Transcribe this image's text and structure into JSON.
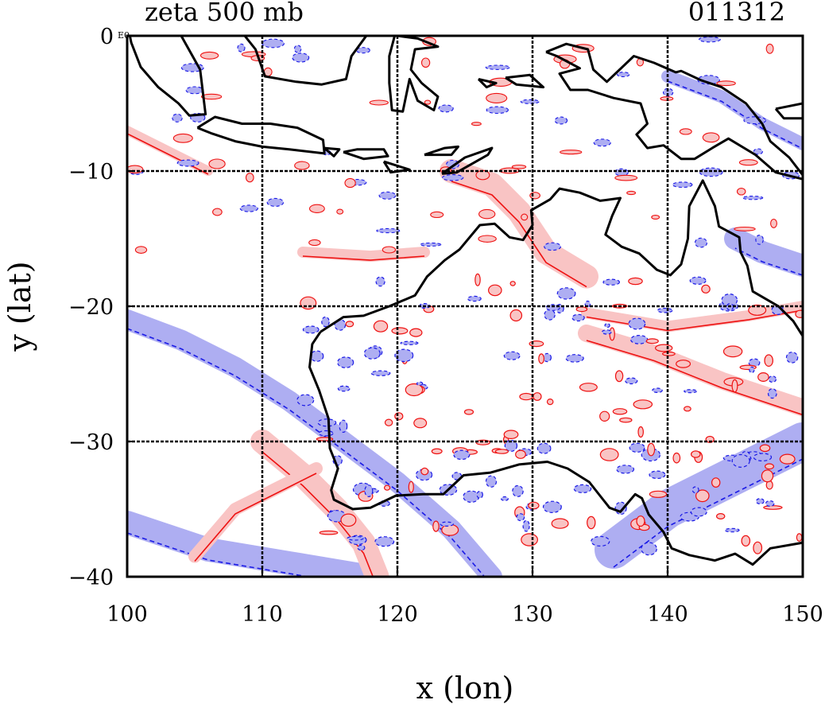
{
  "title_left": "zeta 500 mb",
  "title_right": "011312",
  "corner_tag": "E0",
  "xlabel": "x (lon)",
  "ylabel": "y (lat)",
  "x_ticks": [
    "100",
    "110",
    "120",
    "130",
    "140",
    "150"
  ],
  "y_ticks": [
    "0",
    "−10",
    "−20",
    "−30",
    "−40"
  ],
  "colors": {
    "positive_fill": "#f9c4c4",
    "positive_line": "#ee1111",
    "negative_fill": "#aeaef2",
    "negative_line": "#1a1ae6",
    "coastline": "#000000",
    "grid": "#000000"
  },
  "chart_data": {
    "type": "heatmap",
    "xlim": [
      100,
      150
    ],
    "ylim": [
      -40,
      0
    ],
    "grid_lines_x": [
      110,
      120,
      130,
      140
    ],
    "grid_lines_y": [
      -10,
      -20,
      -30
    ],
    "coastline": [
      [
        [
          114.3,
          -21.9
        ],
        [
          113.7,
          -22.8
        ],
        [
          113.5,
          -24.5
        ],
        [
          114.2,
          -26.2
        ],
        [
          114.9,
          -28.3
        ],
        [
          115.0,
          -30.5
        ],
        [
          115.6,
          -32.0
        ],
        [
          115.1,
          -33.6
        ],
        [
          115.3,
          -34.3
        ],
        [
          116.7,
          -35.0
        ],
        [
          118.0,
          -34.9
        ],
        [
          119.9,
          -34.0
        ],
        [
          121.9,
          -33.9
        ],
        [
          123.4,
          -33.9
        ],
        [
          124.9,
          -32.5
        ],
        [
          126.9,
          -32.3
        ],
        [
          129.0,
          -31.7
        ],
        [
          131.1,
          -31.5
        ],
        [
          132.6,
          -32.0
        ],
        [
          134.2,
          -33.0
        ],
        [
          135.7,
          -34.9
        ],
        [
          136.5,
          -35.2
        ],
        [
          137.6,
          -33.9
        ],
        [
          138.1,
          -34.2
        ],
        [
          138.6,
          -35.4
        ],
        [
          139.7,
          -36.7
        ],
        [
          140.3,
          -37.9
        ],
        [
          141.6,
          -38.4
        ],
        [
          143.5,
          -38.8
        ],
        [
          145.0,
          -38.3
        ],
        [
          146.3,
          -39.1
        ],
        [
          147.6,
          -37.9
        ],
        [
          149.9,
          -37.5
        ],
        [
          150.0,
          -37.4
        ],
        [
          150.0,
          -22.2
        ],
        [
          149.3,
          -21.1
        ],
        [
          148.2,
          -20.0
        ],
        [
          146.3,
          -18.9
        ],
        [
          145.9,
          -17.0
        ],
        [
          145.4,
          -16.0
        ],
        [
          145.3,
          -14.9
        ],
        [
          143.8,
          -14.1
        ],
        [
          143.5,
          -12.6
        ],
        [
          142.6,
          -10.7
        ],
        [
          141.6,
          -12.6
        ],
        [
          141.5,
          -15.0
        ],
        [
          141.0,
          -16.9
        ],
        [
          140.2,
          -17.7
        ],
        [
          139.2,
          -17.3
        ],
        [
          137.9,
          -16.1
        ],
        [
          136.6,
          -15.6
        ],
        [
          135.4,
          -14.7
        ],
        [
          135.9,
          -13.3
        ],
        [
          136.5,
          -12.0
        ],
        [
          135.0,
          -12.2
        ],
        [
          133.5,
          -11.6
        ],
        [
          132.0,
          -11.3
        ],
        [
          131.3,
          -12.1
        ],
        [
          129.9,
          -12.9
        ],
        [
          130.0,
          -14.0
        ],
        [
          129.3,
          -15.1
        ],
        [
          128.3,
          -14.9
        ],
        [
          127.2,
          -13.9
        ],
        [
          126.1,
          -14.0
        ],
        [
          124.6,
          -15.8
        ],
        [
          123.5,
          -16.6
        ],
        [
          122.2,
          -17.8
        ],
        [
          121.3,
          -19.2
        ],
        [
          119.4,
          -20.0
        ],
        [
          117.5,
          -20.7
        ],
        [
          116.0,
          -20.8
        ],
        [
          114.3,
          -21.9
        ]
      ],
      [
        [
          104.0,
          0.0
        ],
        [
          105.4,
          -2.5
        ],
        [
          105.8,
          -5.8
        ],
        [
          104.6,
          -5.9
        ],
        [
          103.8,
          -5.0
        ],
        [
          102.3,
          -3.8
        ],
        [
          101.0,
          -2.3
        ],
        [
          100.3,
          -0.5
        ],
        [
          100.2,
          0.0
        ]
      ],
      [
        [
          105.2,
          -6.8
        ],
        [
          106.5,
          -6.0
        ],
        [
          108.5,
          -6.5
        ],
        [
          110.6,
          -6.5
        ],
        [
          112.6,
          -6.8
        ],
        [
          114.5,
          -7.7
        ],
        [
          114.6,
          -8.7
        ],
        [
          112.0,
          -8.4
        ],
        [
          110.0,
          -8.2
        ],
        [
          108.0,
          -7.8
        ],
        [
          106.2,
          -7.2
        ],
        [
          105.2,
          -6.8
        ]
      ],
      [
        [
          114.6,
          -8.3
        ],
        [
          115.7,
          -8.4
        ],
        [
          115.3,
          -8.9
        ],
        [
          114.6,
          -8.3
        ]
      ],
      [
        [
          116.0,
          -8.6
        ],
        [
          117.0,
          -8.4
        ],
        [
          119.0,
          -8.4
        ],
        [
          119.3,
          -8.9
        ],
        [
          117.5,
          -9.1
        ],
        [
          116.0,
          -8.6
        ]
      ],
      [
        [
          119.0,
          -9.3
        ],
        [
          120.9,
          -9.9
        ],
        [
          119.5,
          -10.1
        ],
        [
          119.0,
          -9.3
        ]
      ],
      [
        [
          122.0,
          -8.8
        ],
        [
          123.5,
          -8.3
        ],
        [
          124.5,
          -8.2
        ],
        [
          124.0,
          -8.8
        ],
        [
          122.0,
          -8.8
        ]
      ],
      [
        [
          123.3,
          -10.2
        ],
        [
          125.0,
          -9.0
        ],
        [
          127.0,
          -8.3
        ],
        [
          126.7,
          -8.8
        ],
        [
          124.4,
          -10.1
        ],
        [
          123.3,
          -10.2
        ]
      ],
      [
        [
          108.7,
          0.0
        ],
        [
          109.5,
          -1.0
        ],
        [
          110.2,
          -3.0
        ],
        [
          112.5,
          -3.4
        ],
        [
          114.4,
          -3.6
        ],
        [
          116.2,
          -3.2
        ],
        [
          116.6,
          -1.5
        ],
        [
          117.7,
          0.0
        ]
      ],
      [
        [
          119.8,
          0.0
        ],
        [
          119.4,
          -1.5
        ],
        [
          119.4,
          -3.5
        ],
        [
          119.6,
          -5.5
        ],
        [
          120.4,
          -5.6
        ],
        [
          120.9,
          -3.2
        ],
        [
          121.5,
          -4.8
        ],
        [
          122.7,
          -5.5
        ],
        [
          123.0,
          -4.5
        ],
        [
          121.8,
          -3.5
        ],
        [
          121.0,
          -2.5
        ],
        [
          121.3,
          -1.0
        ],
        [
          123.0,
          -0.8
        ],
        [
          121.5,
          -0.2
        ],
        [
          120.0,
          0.0
        ]
      ],
      [
        [
          126.0,
          -3.2
        ],
        [
          127.3,
          -3.5
        ],
        [
          126.6,
          -3.8
        ],
        [
          126.0,
          -3.2
        ]
      ],
      [
        [
          128.0,
          -3.1
        ],
        [
          129.8,
          -2.9
        ],
        [
          130.8,
          -3.8
        ],
        [
          128.8,
          -3.6
        ],
        [
          128.0,
          -3.1
        ]
      ],
      [
        [
          131.0,
          -1.2
        ],
        [
          132.5,
          -0.6
        ],
        [
          134.1,
          -1.0
        ],
        [
          134.5,
          -2.5
        ],
        [
          135.5,
          -3.4
        ],
        [
          137.5,
          -1.5
        ],
        [
          139.0,
          -2.0
        ],
        [
          140.6,
          -2.7
        ],
        [
          141.0,
          -2.6
        ],
        [
          142.5,
          -3.3
        ],
        [
          144.0,
          -3.8
        ],
        [
          145.8,
          -5.0
        ],
        [
          147.0,
          -6.5
        ],
        [
          147.6,
          -7.8
        ],
        [
          149.0,
          -9.0
        ],
        [
          150.0,
          -10.3
        ],
        [
          150.0,
          -10.6
        ],
        [
          148.0,
          -10.1
        ],
        [
          146.5,
          -8.8
        ],
        [
          144.5,
          -7.6
        ],
        [
          143.3,
          -8.3
        ],
        [
          142.0,
          -9.1
        ],
        [
          141.0,
          -9.1
        ],
        [
          139.7,
          -8.1
        ],
        [
          138.5,
          -8.3
        ],
        [
          137.7,
          -7.3
        ],
        [
          138.5,
          -6.5
        ],
        [
          138.0,
          -5.0
        ],
        [
          136.0,
          -4.6
        ],
        [
          134.1,
          -4.0
        ],
        [
          132.8,
          -4.0
        ],
        [
          132.0,
          -2.8
        ],
        [
          133.5,
          -2.4
        ],
        [
          131.8,
          -1.5
        ],
        [
          131.0,
          -1.2
        ]
      ],
      [
        [
          148.0,
          -5.4
        ],
        [
          150.0,
          -5.0
        ],
        [
          150.0,
          -6.1
        ],
        [
          148.6,
          -6.1
        ],
        [
          148.0,
          -5.4
        ]
      ],
      [
        [
          144.0,
          -40.0
        ],
        [
          145.0,
          -40.0
        ]
      ]
    ]
  }
}
